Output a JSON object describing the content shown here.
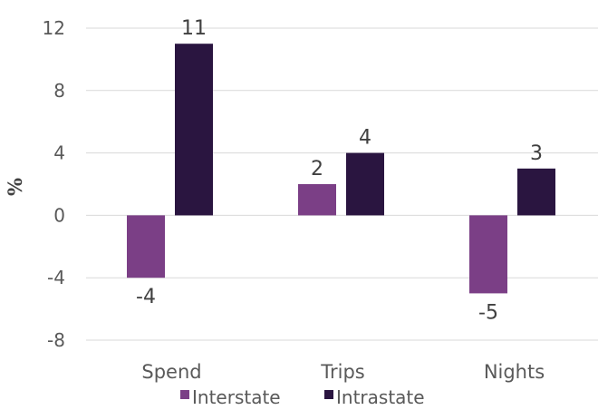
{
  "chart_data": {
    "type": "bar",
    "categories": [
      "Spend",
      "Trips",
      "Nights"
    ],
    "series": [
      {
        "name": "Interstate",
        "values": [
          -4,
          2,
          -5
        ],
        "color": "#7b3f86"
      },
      {
        "name": "Intrastate",
        "values": [
          11,
          4,
          3
        ],
        "color": "#2a1540"
      }
    ],
    "data_labels": [
      [
        "-4",
        "2",
        "-5"
      ],
      [
        "11",
        "4",
        "3"
      ]
    ],
    "ylabel": "%",
    "ylim": [
      -8,
      12
    ],
    "yticks": [
      12,
      8,
      4,
      0,
      -4,
      -8
    ],
    "grid": true,
    "legend_position": "bottom"
  }
}
